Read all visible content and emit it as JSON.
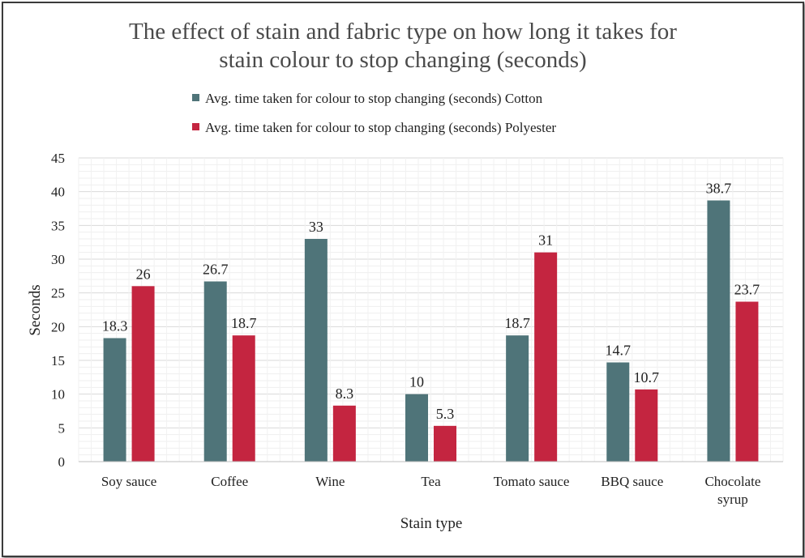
{
  "chart_data": {
    "type": "bar",
    "title_lines": [
      "The effect of stain and fabric type on how long it takes for",
      "stain colour to stop changing (seconds)"
    ],
    "xlabel": "Stain type",
    "ylabel": "Seconds",
    "ylim": [
      0,
      45
    ],
    "ytick_step": 5,
    "grid": true,
    "legend_position": "top",
    "categories": [
      [
        "Soy sauce"
      ],
      [
        "Coffee"
      ],
      [
        "Wine"
      ],
      [
        "Tea"
      ],
      [
        "Tomato sauce"
      ],
      [
        "BBQ sauce"
      ],
      [
        "Chocolate",
        "syrup"
      ]
    ],
    "series": [
      {
        "name": "Avg. time taken for colour to stop changing (seconds) Cotton",
        "color": "#4f7479",
        "values": [
          18.3,
          26.7,
          33,
          10,
          18.7,
          14.7,
          38.7
        ]
      },
      {
        "name": "Avg. time taken for colour to stop changing (seconds) Polyester",
        "color": "#c42540",
        "values": [
          26,
          18.7,
          8.3,
          5.3,
          31,
          10.7,
          23.7
        ]
      }
    ]
  }
}
